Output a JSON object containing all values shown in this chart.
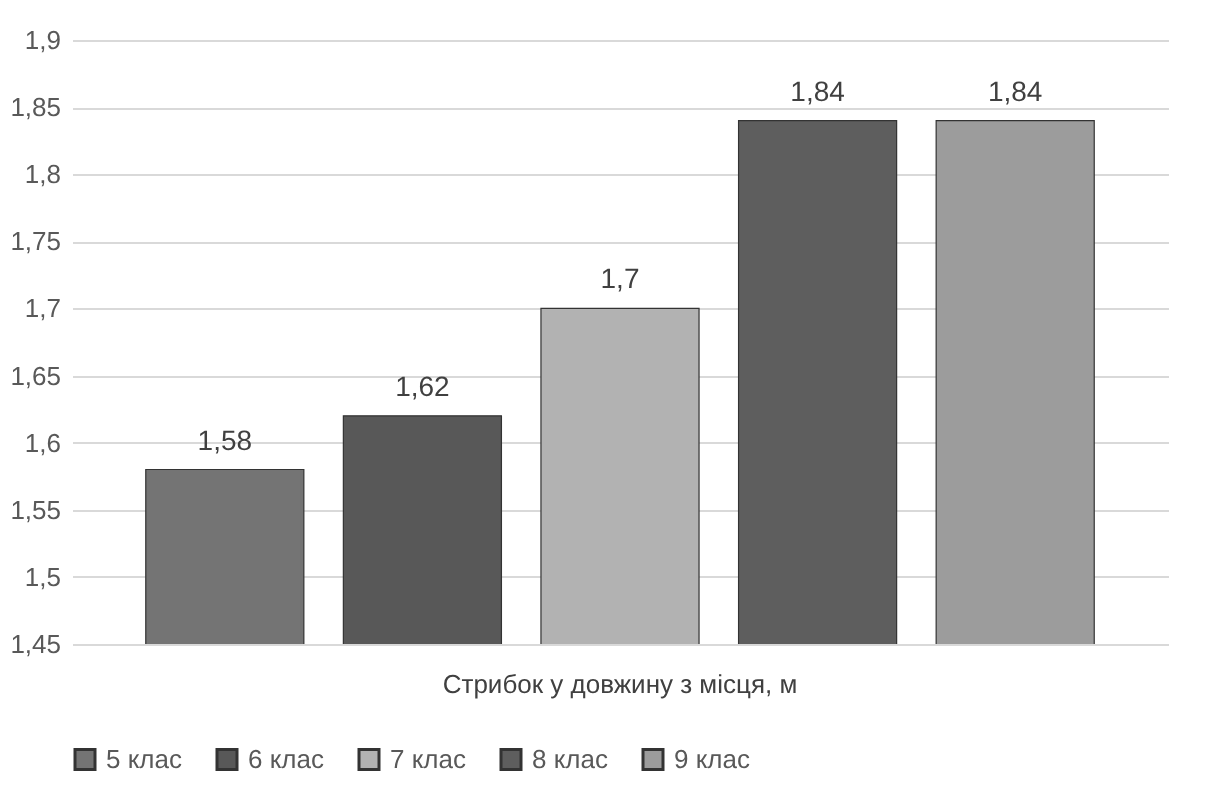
{
  "chart_data": {
    "type": "bar",
    "categories": [
      "Стрибок у довжину з місця, м"
    ],
    "series": [
      {
        "name": "5 клас",
        "color": "#747474",
        "values": [
          1.58
        ],
        "value_labels": [
          "1,58"
        ]
      },
      {
        "name": "6 клас",
        "color": "#585858",
        "values": [
          1.62
        ],
        "value_labels": [
          "1,62"
        ]
      },
      {
        "name": "7 клас",
        "color": "#b2b2b2",
        "values": [
          1.7
        ],
        "value_labels": [
          "1,7"
        ]
      },
      {
        "name": "8 клас",
        "color": "#5e5e5e",
        "values": [
          1.84
        ],
        "value_labels": [
          "1,84"
        ]
      },
      {
        "name": "9 клас",
        "color": "#9c9c9c",
        "values": [
          1.84
        ],
        "value_labels": [
          "1,84"
        ]
      }
    ],
    "ylim": [
      1.45,
      1.9
    ],
    "yticks": [
      {
        "value": 1.45,
        "label": "1,45"
      },
      {
        "value": 1.5,
        "label": "1,5"
      },
      {
        "value": 1.55,
        "label": "1,55"
      },
      {
        "value": 1.6,
        "label": "1,6"
      },
      {
        "value": 1.65,
        "label": "1,65"
      },
      {
        "value": 1.7,
        "label": "1,7"
      },
      {
        "value": 1.75,
        "label": "1,75"
      },
      {
        "value": 1.8,
        "label": "1,8"
      },
      {
        "value": 1.85,
        "label": "1,85"
      },
      {
        "value": 1.9,
        "label": "1,9"
      }
    ],
    "grid": "y",
    "legend": "bottom"
  }
}
